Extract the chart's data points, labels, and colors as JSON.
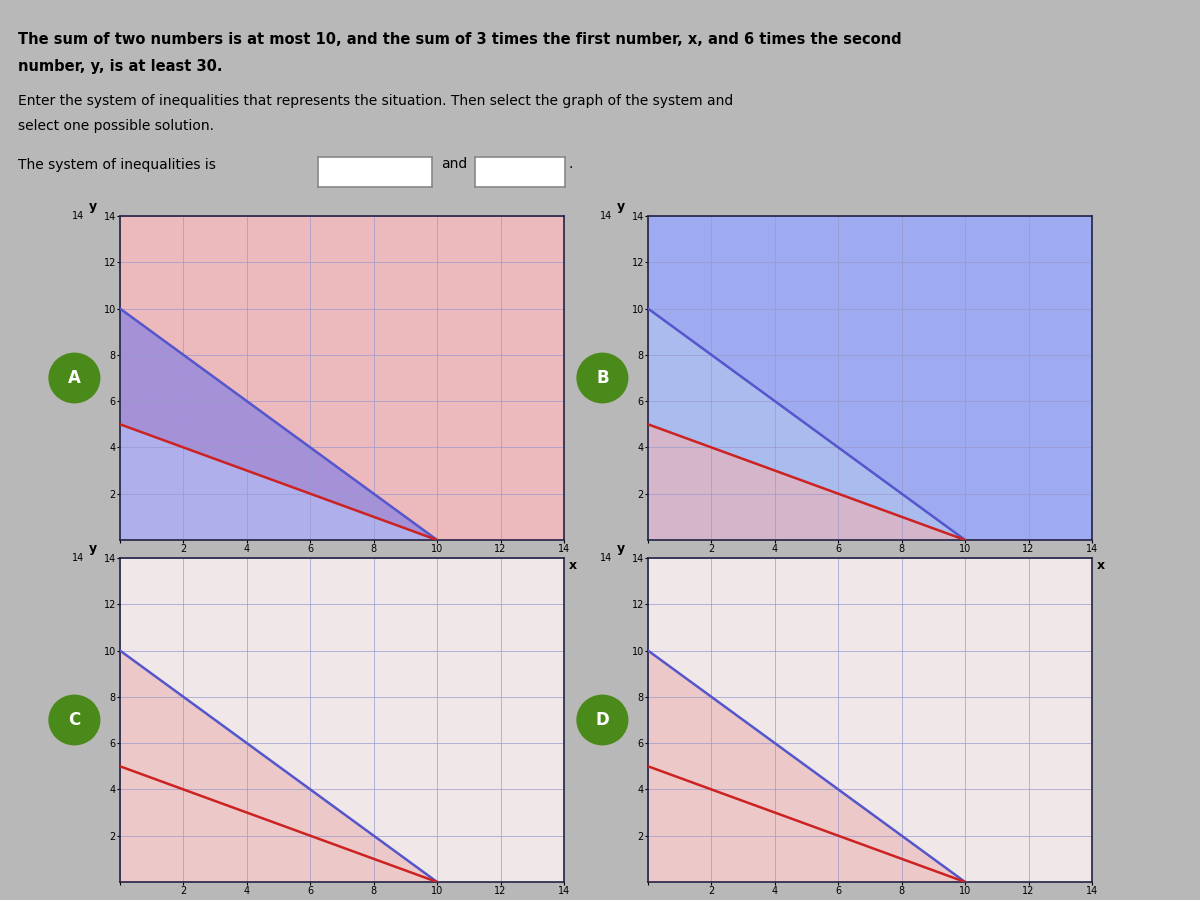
{
  "title_line1": "The sum of two numbers is at most 10, and the sum of 3 times the first number, x, and 6 times the second",
  "title_line2": "number, y, is at least 30.",
  "subtitle1": "Enter the system of inequalities that represents the situation. Then select the graph of the system and",
  "subtitle2": "select one possible solution.",
  "label_system": "The system of inequalities is",
  "label_and": "and",
  "xmax": 14,
  "ymax": 14,
  "xticks": [
    0,
    2,
    4,
    6,
    8,
    10,
    12,
    14
  ],
  "yticks": [
    2,
    4,
    6,
    8,
    10,
    12,
    14
  ],
  "blue_line_color": "#5555cc",
  "red_line_color": "#cc2222",
  "grid_color": "#9999cc",
  "bg_white": "#f0f0f8",
  "bg_blue": "#aabbee",
  "fill_blue": "#8899dd",
  "fill_red": "#ee9999",
  "fill_purple": "#9988cc",
  "border_color": "#222244",
  "btn_color": "#4a8a1a",
  "page_bg": "#b8b8b8",
  "graph_labels": [
    "A",
    "B",
    "C",
    "D"
  ]
}
